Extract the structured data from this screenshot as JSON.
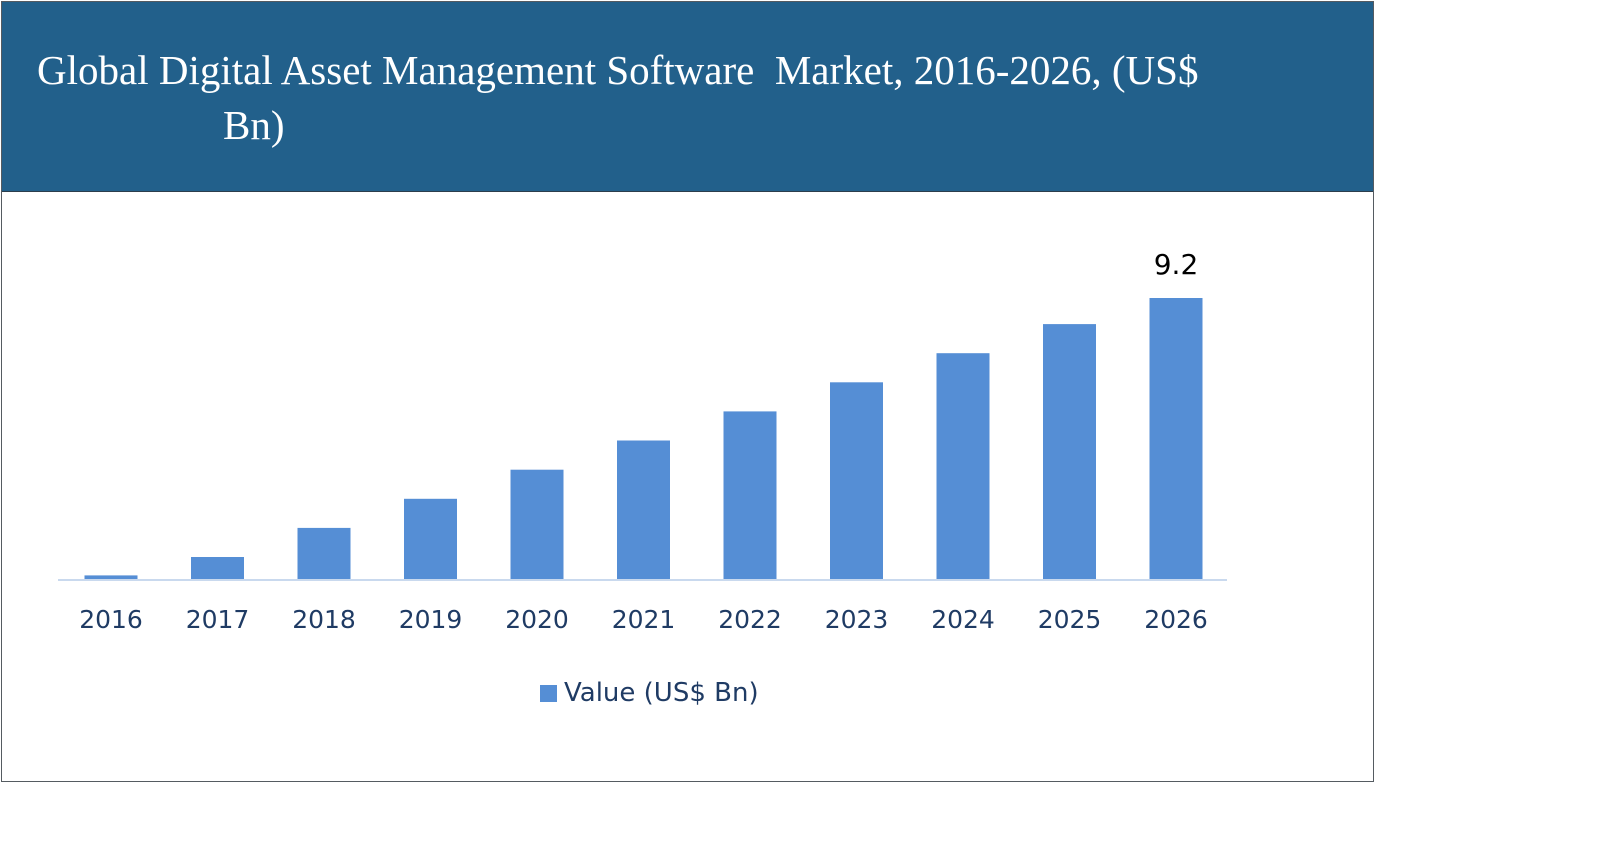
{
  "title": {
    "line1": "Global Digital Asset Management Software  Market, 2016-2026, (US$",
    "line2": "Bn)"
  },
  "colors": {
    "banner": "#22608b",
    "bar": "#558ed5",
    "tick_text": "#1f3b64",
    "axis": "#c9d9ee"
  },
  "chart_data": {
    "type": "bar",
    "title": "Global Digital Asset Management Software  Market, 2016-2026, (US$ Bn)",
    "categories": [
      "2016",
      "2017",
      "2018",
      "2019",
      "2020",
      "2021",
      "2022",
      "2023",
      "2024",
      "2025",
      "2026"
    ],
    "series": [
      {
        "name": "Value (US$ Bn)",
        "values": [
          0.15,
          0.75,
          1.7,
          2.65,
          3.6,
          4.55,
          5.5,
          6.45,
          7.4,
          8.35,
          9.2
        ]
      }
    ],
    "data_labels": [
      {
        "category": "2026",
        "text": "9.2"
      }
    ],
    "xlabel": "",
    "ylabel": "",
    "ylim": [
      0,
      9.2
    ],
    "grid": false,
    "legend": "bottom-center"
  }
}
